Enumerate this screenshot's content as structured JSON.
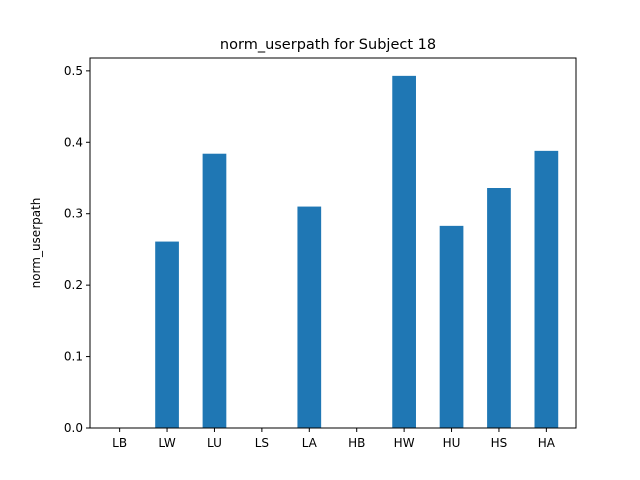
{
  "chart_data": {
    "type": "bar",
    "title": "norm_userpath for Subject 18",
    "xlabel": "",
    "ylabel": "norm_userpath",
    "categories": [
      "LB",
      "LW",
      "LU",
      "LS",
      "LA",
      "HB",
      "HW",
      "HU",
      "HS",
      "HA"
    ],
    "values": [
      0,
      0.261,
      0.384,
      0,
      0.31,
      0,
      0.493,
      0.283,
      0.336,
      0.388
    ],
    "ylim": [
      0,
      0.518
    ],
    "yticks": [
      0.0,
      0.1,
      0.2,
      0.3,
      0.4,
      0.5
    ],
    "ytick_labels": [
      "0.0",
      "0.1",
      "0.2",
      "0.3",
      "0.4",
      "0.5"
    ],
    "bar_color": "#1f77b4",
    "grid": false,
    "legend": "none"
  }
}
